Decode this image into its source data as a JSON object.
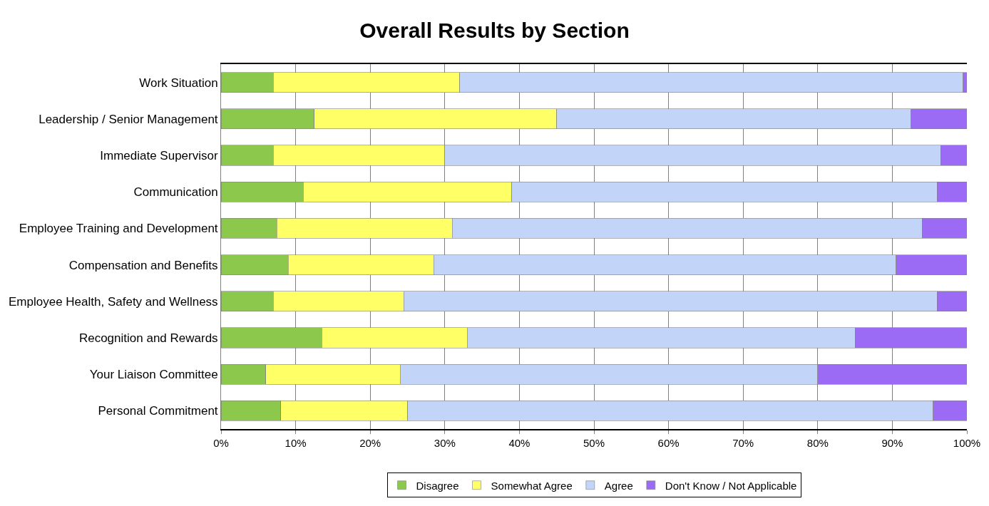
{
  "chart_data": {
    "type": "bar",
    "orientation": "horizontal",
    "stacked": true,
    "title": "Overall Results by Section",
    "categories": [
      "Work Situation",
      "Leadership / Senior Management",
      "Immediate Supervisor",
      "Communication",
      "Employee Training and Development",
      "Compensation and Benefits",
      "Employee Health, Safety and Wellness",
      "Recognition and Rewards",
      "Your Liaison Committee",
      "Personal Commitment"
    ],
    "series": [
      {
        "name": "Disagree",
        "color": "#8cc84b",
        "values": [
          7,
          12.5,
          7,
          11,
          7.5,
          9,
          7,
          13.5,
          6,
          8
        ]
      },
      {
        "name": "Somewhat Agree",
        "color": "#ffff66",
        "values": [
          25,
          32.5,
          23,
          28,
          23.5,
          19.5,
          17.5,
          19.5,
          18,
          17
        ]
      },
      {
        "name": "Agree",
        "color": "#c2d4f7",
        "values": [
          67.5,
          47.5,
          66.5,
          57,
          63,
          62,
          71.5,
          52,
          56,
          70.5
        ]
      },
      {
        "name": "Don't Know / Not Applicable",
        "color": "#9b6bf5",
        "values": [
          0.5,
          7.5,
          3.5,
          4,
          6,
          9.5,
          4,
          15,
          20,
          4.5
        ]
      }
    ],
    "xlim": [
      0,
      100
    ],
    "xticks": [
      {
        "value": 0,
        "label": "0%"
      },
      {
        "value": 10,
        "label": "10%"
      },
      {
        "value": 20,
        "label": "20%"
      },
      {
        "value": 30,
        "label": "30%"
      },
      {
        "value": 40,
        "label": "40%"
      },
      {
        "value": 50,
        "label": "50%"
      },
      {
        "value": 60,
        "label": "60%"
      },
      {
        "value": 70,
        "label": "70%"
      },
      {
        "value": 80,
        "label": "80%"
      },
      {
        "value": 90,
        "label": "90%"
      },
      {
        "value": 100,
        "label": "100%"
      }
    ],
    "grid": "x",
    "legend": "bottom"
  }
}
